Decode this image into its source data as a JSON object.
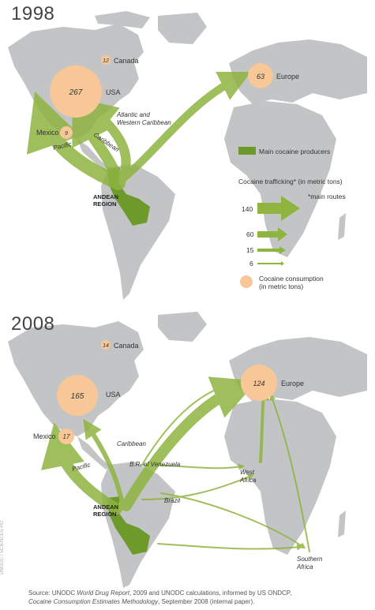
{
  "map_1998": {
    "year": "1998",
    "consumption": [
      {
        "region": "USA",
        "value": "267"
      },
      {
        "region": "Canada",
        "value": "12"
      },
      {
        "region": "Mexico",
        "value": "9"
      },
      {
        "region": "Europe",
        "value": "63"
      }
    ],
    "route_labels": {
      "atlantic": "Atlantic and\nWestern Caribbean",
      "caribbean": "Caribbean",
      "pacific": "Pacific"
    },
    "andean_label": [
      "ANDEAN",
      "REGION"
    ]
  },
  "map_2008": {
    "year": "2008",
    "consumption": [
      {
        "region": "USA",
        "value": "165"
      },
      {
        "region": "Canada",
        "value": "14"
      },
      {
        "region": "Mexico",
        "value": "17"
      },
      {
        "region": "Europe",
        "value": "124"
      }
    ],
    "route_labels": {
      "caribbean": "Caribbean",
      "venezuela": "B.R. of Venezuela",
      "pacific": "Pacific",
      "brazil": "Brazil",
      "west_africa": "West\nAfrica",
      "southern_africa": "Southern\nAfrica"
    },
    "andean_label": [
      "ANDEAN",
      "REGION"
    ]
  },
  "legend": {
    "producers": "Main cocaine producers",
    "trafficking": "Cocaine trafficking* (in metric tons)",
    "main_routes": "*main routes",
    "arrow_values": [
      "140",
      "60",
      "15",
      "6"
    ],
    "consumption": "Cocaine consumption\n(in metric tons)"
  },
  "source": {
    "prefix": "Source: UNODC ",
    "report": "World Drug Report",
    "middle": ", 2009 and UNODC calculations, informed by US ONDCP,",
    "title2": "Cocaine Consumption Estimates Methodology",
    "suffix": ", September 2008 (internal paper)."
  },
  "credit": "UNODC / SCIENCES PO",
  "colors": {
    "land": "#c2c4c6",
    "route": "#8fb440",
    "route_dark": "#6f9a2a",
    "consumption": "#f8c797",
    "producer": "#6d9a2b"
  }
}
